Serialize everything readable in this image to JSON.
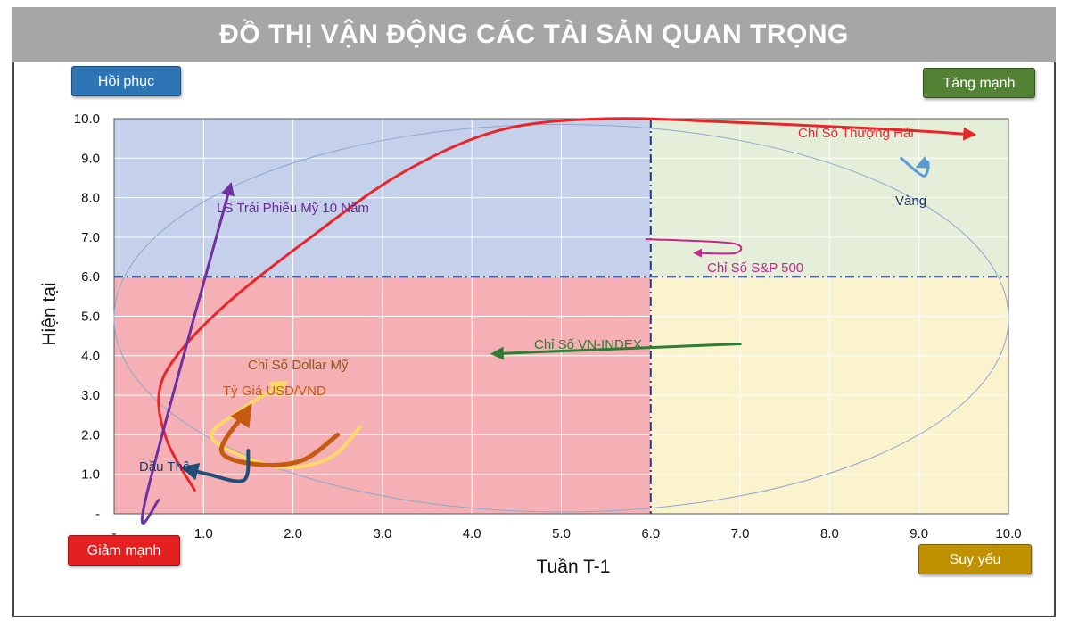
{
  "title": "ĐỒ THỊ VẬN ĐỘNG CÁC TÀI SẢN QUAN TRỌNG",
  "quadrants": {
    "top_left": {
      "label": "Hồi phục",
      "color": "#2e75b6"
    },
    "top_right": {
      "label": "Tăng mạnh",
      "color": "#548235"
    },
    "bottom_left": {
      "label": "Giảm mạnh",
      "color": "#e52020"
    },
    "bottom_right": {
      "label": "Suy yếu",
      "color": "#bf9000"
    }
  },
  "chart_data": {
    "type": "line",
    "title": "ĐỒ THỊ VẬN ĐỘNG CÁC TÀI SẢN QUAN TRỌNG",
    "xlabel": "Tuần T-1",
    "ylabel": "Hiện tại",
    "xlim": [
      0,
      10
    ],
    "ylim": [
      0,
      10
    ],
    "x_ticks": [
      "-",
      "1.0",
      "2.0",
      "3.0",
      "4.0",
      "5.0",
      "6.0",
      "7.0",
      "8.0",
      "9.0",
      "10.0"
    ],
    "y_ticks": [
      "-",
      "1.0",
      "2.0",
      "3.0",
      "4.0",
      "5.0",
      "6.0",
      "7.0",
      "8.0",
      "9.0",
      "10.0"
    ],
    "grid": true,
    "quadrant_split": {
      "x": 6.0,
      "y": 6.0
    },
    "quadrant_fills": {
      "top_left": "#c5d1ea",
      "top_right": "#e4eed9",
      "bottom_left": "#f4b0b5",
      "bottom_right": "#fbf3cd"
    },
    "series": [
      {
        "name": "Chỉ Số Thượng Hải",
        "color": "#e8262a",
        "points": [
          [
            0.9,
            0.6
          ],
          [
            0.6,
            1.8
          ],
          [
            0.5,
            3.0
          ],
          [
            0.7,
            4.0
          ],
          [
            1.3,
            5.4
          ],
          [
            2.2,
            7.0
          ],
          [
            3.2,
            8.6
          ],
          [
            4.3,
            9.7
          ],
          [
            5.5,
            10.0
          ],
          [
            7.0,
            9.9
          ],
          [
            8.5,
            9.75
          ],
          [
            9.6,
            9.6
          ]
        ]
      },
      {
        "name": "LS Trái Phiếu Mỹ 10 Năm",
        "color": "#7030a0",
        "points": [
          [
            0.5,
            0.35
          ],
          [
            0.35,
            0.35
          ],
          [
            1.3,
            8.3
          ]
        ]
      },
      {
        "name": "Vàng",
        "color": "#5b9bd5",
        "points": [
          [
            8.8,
            9.0
          ],
          [
            9.05,
            8.55
          ],
          [
            9.1,
            8.9
          ],
          [
            9.0,
            8.8
          ]
        ]
      },
      {
        "name": "Chỉ Số S&P 500",
        "color": "#c0288c",
        "points": [
          [
            5.95,
            6.95
          ],
          [
            6.9,
            6.85
          ],
          [
            6.95,
            6.6
          ],
          [
            6.5,
            6.6
          ]
        ]
      },
      {
        "name": "Chỉ Số VN-INDEX",
        "color": "#2e7d32",
        "points": [
          [
            7.0,
            4.3
          ],
          [
            4.25,
            4.05
          ]
        ]
      },
      {
        "name": "Chỉ Số Dollar Mỹ",
        "color": "#ffd966",
        "points": [
          [
            2.75,
            2.2
          ],
          [
            2.4,
            1.4
          ],
          [
            1.8,
            1.2
          ],
          [
            1.1,
            1.9
          ],
          [
            1.4,
            2.6
          ],
          [
            1.9,
            3.3
          ]
        ]
      },
      {
        "name": "Tỷ Giá USD/VND",
        "color": "#c55a11",
        "points": [
          [
            2.5,
            2.0
          ],
          [
            2.1,
            1.35
          ],
          [
            1.6,
            1.25
          ],
          [
            1.2,
            1.6
          ],
          [
            1.5,
            2.65
          ]
        ]
      },
      {
        "name": "Dầu Thô",
        "color": "#1f4e79",
        "points": [
          [
            1.5,
            1.6
          ],
          [
            1.45,
            0.85
          ],
          [
            1.05,
            1.0
          ],
          [
            0.8,
            1.15
          ]
        ]
      }
    ],
    "series_label_text": {
      "shanghai": "Chỉ Số Thượng Hải",
      "bond": "LS Trái Phiếu Mỹ 10 Năm",
      "gold": "Vàng",
      "sp500": "Chỉ Số S&P 500",
      "vnindex": "Chỉ Số VN-INDEX",
      "dollar": "Chỉ Số Dollar Mỹ",
      "usdvnd": "Tỷ Giá USD/VND",
      "oil": "Dầu Thô"
    }
  }
}
